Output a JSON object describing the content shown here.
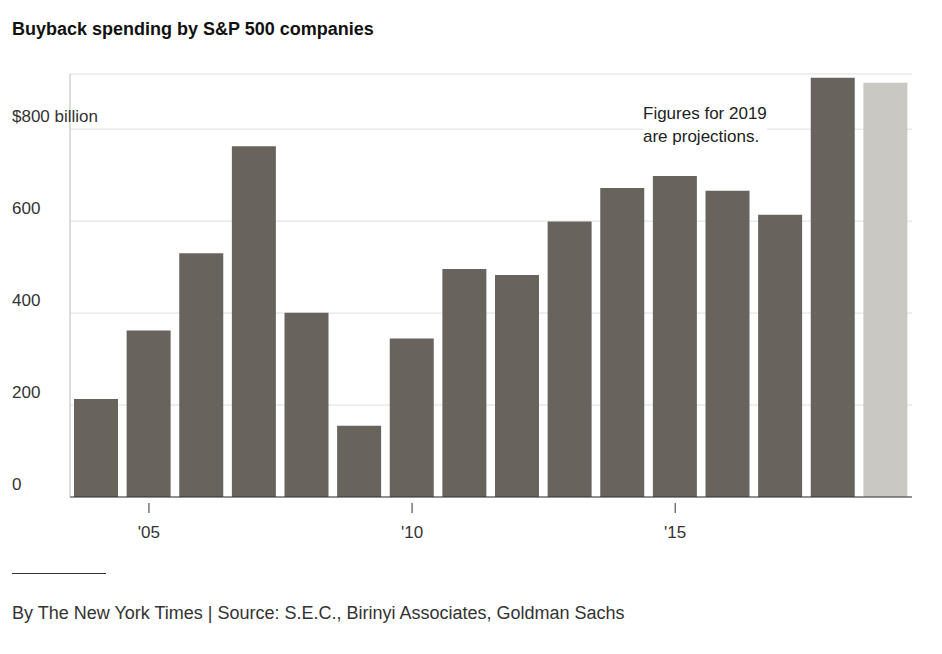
{
  "chart_data": {
    "type": "bar",
    "title": "Buyback spending by S&P 500 companies",
    "categories": [
      null,
      "'05",
      null,
      null,
      null,
      null,
      "'10",
      null,
      null,
      null,
      null,
      "'15",
      null,
      null,
      null,
      null
    ],
    "values": [
      213,
      362,
      530,
      763,
      401,
      155,
      345,
      496,
      483,
      599,
      672,
      698,
      666,
      614,
      912,
      901
    ],
    "colors": [
      "#68635c",
      "#68635c",
      "#68635c",
      "#68635c",
      "#68635c",
      "#68635c",
      "#68635c",
      "#68635c",
      "#68635c",
      "#68635c",
      "#68635c",
      "#68635c",
      "#68635c",
      "#68635c",
      "#68635c",
      "#c9c8c3"
    ],
    "ylim": [
      0,
      920
    ],
    "yticks": [
      0,
      200,
      400,
      600,
      {
        "value": 800,
        "label": "$800 billion"
      }
    ],
    "grid": true,
    "annotation": [
      "Figures for 2019",
      "are projections."
    ],
    "source": "By The New York Times | Source: S.E.C., Birinyi Associates, Goldman Sachs"
  }
}
